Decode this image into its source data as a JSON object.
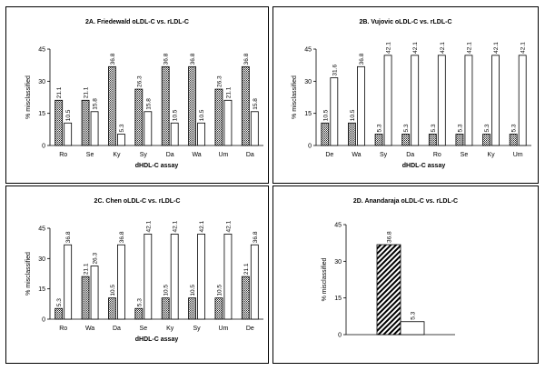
{
  "chart_data": [
    {
      "type": "bar",
      "title": "2A. Friedewald oLDL-C vs. rLDL-C",
      "xlabel": "dHDL-C assay",
      "ylabel": "% misclassified",
      "ylim": [
        0,
        45
      ],
      "yticks": [
        "0",
        "15",
        "30",
        "45"
      ],
      "categories": [
        "Ro",
        "Se",
        "Ky",
        "Sy",
        "Da",
        "Wa",
        "Um",
        "Da"
      ],
      "series": [
        {
          "values": [
            21.1,
            21.1,
            36.8,
            26.3,
            36.8,
            36.8,
            26.3,
            36.8
          ],
          "labels": [
            "21.1",
            "21.1",
            "36.8",
            "26.3",
            "36.8",
            "36.8",
            "26.3",
            "36.8"
          ]
        },
        {
          "values": [
            10.5,
            15.8,
            5.3,
            15.8,
            10.5,
            10.5,
            21.1,
            15.8
          ],
          "labels": [
            "10.5",
            "15.8",
            "5.3",
            "15.8",
            "10.5",
            "10.5",
            "21.1",
            "15.8"
          ]
        }
      ]
    },
    {
      "type": "bar",
      "title": "2B. Vujovic oLDL-C vs. rLDL-C",
      "xlabel": "dHDL-C assay",
      "ylabel": "% misclassified",
      "ylim": [
        0,
        45
      ],
      "yticks": [
        "0",
        "15",
        "30",
        "45"
      ],
      "categories": [
        "De",
        "Wa",
        "Sy",
        "Da",
        "Ro",
        "Se",
        "Ky",
        "Um"
      ],
      "series": [
        {
          "values": [
            10.5,
            10.5,
            5.3,
            5.3,
            5.3,
            5.3,
            5.3,
            5.3
          ],
          "labels": [
            "10.5",
            "10.5",
            "5.3",
            "5.3",
            "5.3",
            "5.3",
            "5.3",
            "5.3"
          ]
        },
        {
          "values": [
            31.6,
            36.8,
            42.1,
            42.1,
            42.1,
            42.1,
            42.1,
            42.1
          ],
          "labels": [
            "31.6",
            "36.8",
            "42.1",
            "42.1",
            "42.1",
            "42.1",
            "42.1",
            "42.1"
          ]
        }
      ]
    },
    {
      "type": "bar",
      "title": "2C. Chen oLDL-C vs. rLDL-C",
      "xlabel": "dHDL-C assay",
      "ylabel": "% misclassified",
      "ylim": [
        0,
        45
      ],
      "yticks": [
        "0",
        "15",
        "30",
        "45"
      ],
      "categories": [
        "Ro",
        "Wa",
        "Da",
        "Se",
        "Ky",
        "Sy",
        "Um",
        "De"
      ],
      "series": [
        {
          "values": [
            5.3,
            21.1,
            10.5,
            5.3,
            10.5,
            10.5,
            10.5,
            21.1
          ],
          "labels": [
            "5.3",
            "21.1",
            "10.5",
            "5.3",
            "10.5",
            "10.5",
            "10.5",
            "21.1"
          ]
        },
        {
          "values": [
            36.8,
            26.3,
            36.8,
            42.1,
            42.1,
            42.1,
            42.1,
            36.8
          ],
          "labels": [
            "36.8",
            "26.3",
            "36.8",
            "42.1",
            "42.1",
            "42.1",
            "42.1",
            "36.8"
          ]
        }
      ]
    },
    {
      "type": "bar",
      "title": "2D. Anandaraja oLDL-C vs. rLDL-C",
      "xlabel": "",
      "ylabel": "% misclassified",
      "ylim": [
        0,
        45
      ],
      "yticks": [
        "0",
        "15",
        "30",
        "45"
      ],
      "categories": [
        ""
      ],
      "series": [
        {
          "values": [
            36.8
          ],
          "labels": [
            "36.8"
          ]
        },
        {
          "values": [
            5.3
          ],
          "labels": [
            "5.3"
          ]
        }
      ]
    }
  ]
}
